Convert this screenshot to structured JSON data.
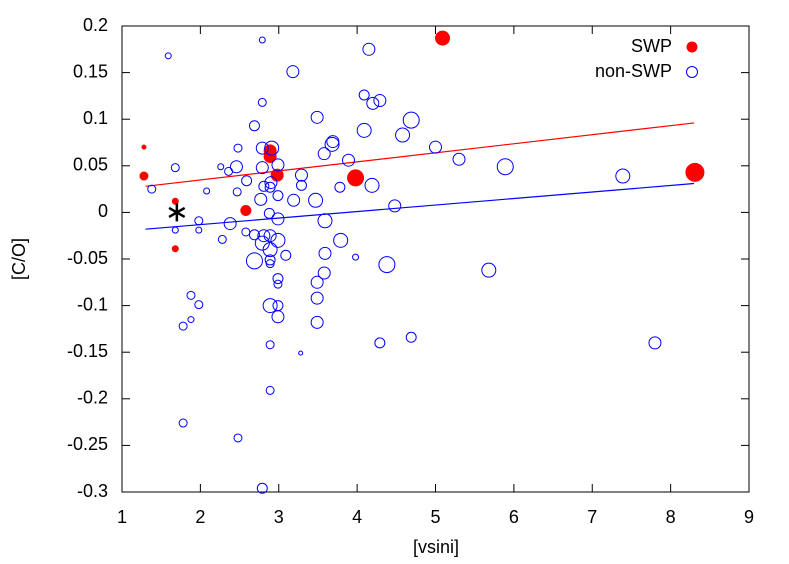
{
  "chart_data": {
    "type": "scatter",
    "x_label": "[vsini]",
    "y_label": "[C/O]",
    "xlim": [
      1,
      9
    ],
    "ylim": [
      -0.3,
      0.2
    ],
    "xticks": [
      1,
      2,
      3,
      4,
      5,
      6,
      7,
      8,
      9
    ],
    "yticks": [
      -0.3,
      -0.25,
      -0.2,
      -0.15,
      -0.1,
      -0.05,
      0,
      0.05,
      0.1,
      0.15,
      0.2
    ],
    "legend": "top-right",
    "series": [
      {
        "name": "SWP",
        "color": "#ff0000",
        "filled": true,
        "x": [
          1.28,
          1.28,
          1.68,
          1.68,
          2.58,
          2.89,
          2.89,
          2.98,
          3.98,
          5.09,
          8.31
        ],
        "values": [
          0.039,
          0.07,
          0.012,
          -0.039,
          0.002,
          0.066,
          0.06,
          0.04,
          0.037,
          0.187,
          0.043
        ],
        "sizes": [
          4,
          2,
          3,
          3,
          5,
          6,
          6,
          6,
          8,
          7,
          9
        ]
      },
      {
        "name": "non-SWP",
        "color": "#0000ff",
        "filled": false,
        "x": [
          1.59,
          2.79,
          4.15,
          3.18,
          2.79,
          4.09,
          4.2,
          4.29,
          3.49,
          4.69,
          2.69,
          4.09,
          4.58,
          3.69,
          3.68,
          2.48,
          2.79,
          2.91,
          5.0,
          3.58,
          3.89,
          5.3,
          2.99,
          5.89,
          1.68,
          2.36,
          2.26,
          2.46,
          2.79,
          2.59,
          3.29,
          7.39,
          2.81,
          2.9,
          2.89,
          3.29,
          4.19,
          3.78,
          1.38,
          2.08,
          2.47,
          2.99,
          3.19,
          2.77,
          3.47,
          4.48,
          2.88,
          2.99,
          1.98,
          3.59,
          2.38,
          1.68,
          1.98,
          2.58,
          2.69,
          2.81,
          2.89,
          2.79,
          2.28,
          2.99,
          3.79,
          2.89,
          3.59,
          3.09,
          3.98,
          2.69,
          2.89,
          2.89,
          4.38,
          3.58,
          5.68,
          2.99,
          3.49,
          2.99,
          1.88,
          3.49,
          1.98,
          2.89,
          2.99,
          2.99,
          1.88,
          3.49,
          1.78,
          4.69,
          4.29,
          7.8,
          2.89,
          3.28,
          2.89,
          1.78,
          2.48,
          2.79
        ],
        "values": [
          0.168,
          0.185,
          0.175,
          0.151,
          0.118,
          0.126,
          0.117,
          0.12,
          0.102,
          0.099,
          0.093,
          0.088,
          0.083,
          0.076,
          0.073,
          0.069,
          0.069,
          0.069,
          0.07,
          0.063,
          0.056,
          0.057,
          0.051,
          0.049,
          0.048,
          0.044,
          0.049,
          0.049,
          0.048,
          0.034,
          0.04,
          0.039,
          0.028,
          0.032,
          0.027,
          0.029,
          0.029,
          0.027,
          0.025,
          0.023,
          0.022,
          0.018,
          0.013,
          0.014,
          0.013,
          0.007,
          -0.001,
          -0.007,
          -0.009,
          -0.009,
          -0.012,
          -0.019,
          -0.019,
          -0.021,
          -0.024,
          -0.025,
          -0.025,
          -0.033,
          -0.029,
          -0.03,
          -0.03,
          -0.04,
          -0.044,
          -0.046,
          -0.048,
          -0.052,
          -0.051,
          -0.055,
          -0.056,
          -0.065,
          -0.062,
          -0.071,
          -0.075,
          -0.077,
          -0.089,
          -0.092,
          -0.099,
          -0.1,
          -0.1,
          -0.112,
          -0.115,
          -0.118,
          -0.122,
          -0.134,
          -0.14,
          -0.14,
          -0.142,
          -0.151,
          -0.191,
          -0.226,
          -0.242,
          -0.296
        ],
        "sizes": [
          3,
          3,
          6,
          6,
          4,
          5,
          6,
          6,
          6,
          8,
          5,
          7,
          7,
          6,
          7,
          4,
          6,
          7,
          6,
          6,
          6,
          6,
          6,
          8,
          4,
          4,
          3,
          6,
          6,
          5,
          6,
          7,
          5,
          6,
          5,
          5,
          7,
          5,
          4,
          3,
          4,
          5,
          6,
          6,
          7,
          6,
          5,
          6,
          4,
          7,
          6,
          3,
          3,
          4,
          5,
          6,
          6,
          7,
          4,
          7,
          7,
          7,
          6,
          5,
          3,
          8,
          5,
          4,
          8,
          6,
          7,
          5,
          6,
          4,
          4,
          6,
          4,
          7,
          5,
          6,
          3,
          6,
          4,
          5,
          5,
          6,
          4,
          2,
          4,
          4,
          4,
          5
        ]
      }
    ],
    "fit_lines": [
      {
        "color": "#ff0000",
        "x": [
          1.3,
          8.3
        ],
        "y": [
          0.028,
          0.096
        ]
      },
      {
        "color": "#0000ff",
        "x": [
          1.3,
          8.3
        ],
        "y": [
          -0.018,
          0.031
        ]
      }
    ],
    "reference_point": {
      "x": 1.7,
      "y": 0
    }
  }
}
